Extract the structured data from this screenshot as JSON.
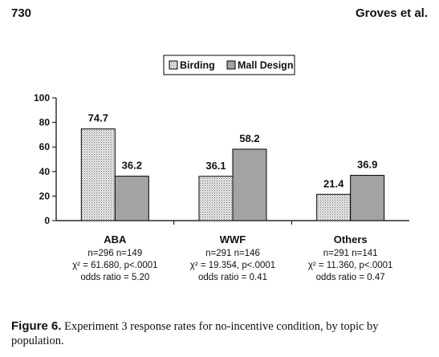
{
  "header": {
    "page_number": "730",
    "authors": "Groves et al."
  },
  "caption": {
    "label": "Figure 6.",
    "text": " Experiment 3 response rates for no-incentive condition, by topic by population."
  },
  "chart_data": {
    "type": "bar",
    "categories": [
      "ABA",
      "WWF",
      "Others"
    ],
    "series": [
      {
        "name": "Birding",
        "values": [
          74.7,
          36.1,
          21.4
        ],
        "labels": [
          "74.7",
          "36.1",
          "21.4"
        ],
        "pattern": "dotted",
        "color": "#e6e6e6"
      },
      {
        "name": "Mall Design",
        "values": [
          36.2,
          58.2,
          36.9
        ],
        "labels": [
          "36.2",
          "58.2",
          "36.9"
        ],
        "pattern": "solid",
        "color": "#a3a3a3"
      }
    ],
    "ylim": [
      0,
      100
    ],
    "yticks": [
      0,
      20,
      40,
      60,
      80,
      100
    ],
    "ytick_labels": [
      "0",
      "20",
      "40",
      "60",
      "80",
      "100"
    ],
    "legend_position": "top-center",
    "grid": false,
    "annotations": [
      [
        "n=296  n=149",
        "χ² = 61.680, p<.0001",
        "odds ratio = 5.20"
      ],
      [
        "n=291  n=146",
        "χ² = 19.354, p<.0001",
        "odds ratio = 0.41"
      ],
      [
        "n=291  n=141",
        "χ² = 11.360, p<.0001",
        "odds ratio = 0.47"
      ]
    ]
  }
}
